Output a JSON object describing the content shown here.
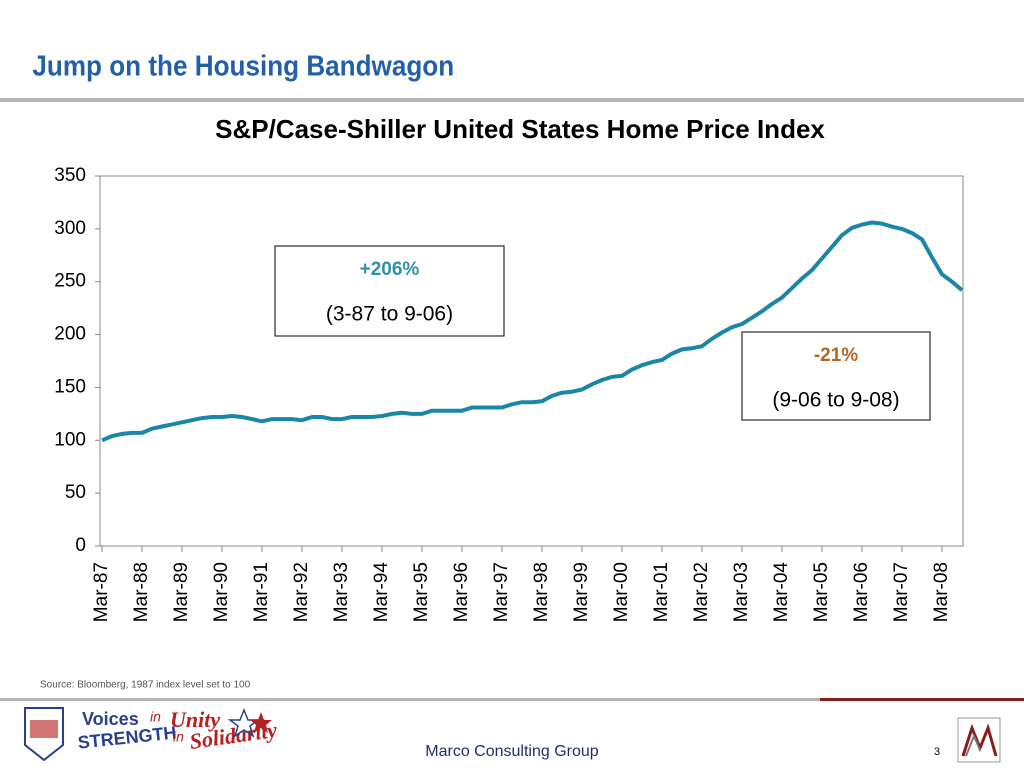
{
  "slide_title": "Jump on the Housing Bandwagon",
  "chart_data": {
    "type": "line",
    "title": "S&P/Case-Shiller United States Home Price Index",
    "categories": [
      "Mar-87",
      null,
      null,
      null,
      "Mar-88",
      null,
      null,
      null,
      "Mar-89",
      null,
      null,
      null,
      "Mar-90",
      null,
      null,
      null,
      "Mar-91",
      null,
      null,
      null,
      "Mar-92",
      null,
      null,
      null,
      "Mar-93",
      null,
      null,
      null,
      "Mar-94",
      null,
      null,
      null,
      "Mar-95",
      null,
      null,
      null,
      "Mar-96",
      null,
      null,
      null,
      "Mar-97",
      null,
      null,
      null,
      "Mar-98",
      null,
      null,
      null,
      "Mar-99",
      null,
      null,
      null,
      "Mar-00",
      null,
      null,
      null,
      "Mar-01",
      null,
      null,
      null,
      "Mar-02",
      null,
      null,
      null,
      "Mar-03",
      null,
      null,
      null,
      "Mar-04",
      null,
      null,
      null,
      "Mar-05",
      null,
      null,
      null,
      "Mar-06",
      null,
      null,
      null,
      "Mar-07",
      null,
      null,
      null,
      "Mar-08",
      null,
      null
    ],
    "values": [
      100,
      104,
      106,
      107,
      107,
      111,
      113,
      115,
      117,
      119,
      121,
      122,
      122,
      123,
      122,
      120,
      118,
      120,
      120,
      120,
      119,
      122,
      122,
      120,
      120,
      122,
      122,
      122,
      123,
      125,
      126,
      125,
      125,
      128,
      128,
      128,
      128,
      131,
      131,
      131,
      131,
      134,
      136,
      136,
      137,
      142,
      145,
      146,
      148,
      153,
      157,
      160,
      161,
      167,
      171,
      174,
      176,
      182,
      186,
      187,
      189,
      196,
      202,
      207,
      210,
      216,
      222,
      229,
      235,
      244,
      253,
      261,
      272,
      283,
      294,
      301,
      304,
      306,
      305,
      302,
      300,
      296,
      290,
      273,
      257,
      250,
      242
    ],
    "color": "#1a86a8",
    "ylim": [
      0,
      350
    ],
    "yticks": [
      0,
      50,
      100,
      150,
      200,
      250,
      300,
      350
    ],
    "annotations": [
      {
        "label": "+206%",
        "detail": "(3-87 to 9-06)",
        "color": "#2e8fa6"
      },
      {
        "label": "-21%",
        "detail": "(9-06 to 9-08)",
        "color": "#b8661e"
      }
    ]
  },
  "source": "Source: Bloomberg, 1987 index level set to 100",
  "footer": "Marco Consulting Group",
  "page_number": "3",
  "logo": {
    "line1a": "Voices",
    "line1b": "in",
    "line1c": "Unity",
    "line2a": "STRENGTH",
    "line2b": "in",
    "line2c": "Solidarity"
  }
}
